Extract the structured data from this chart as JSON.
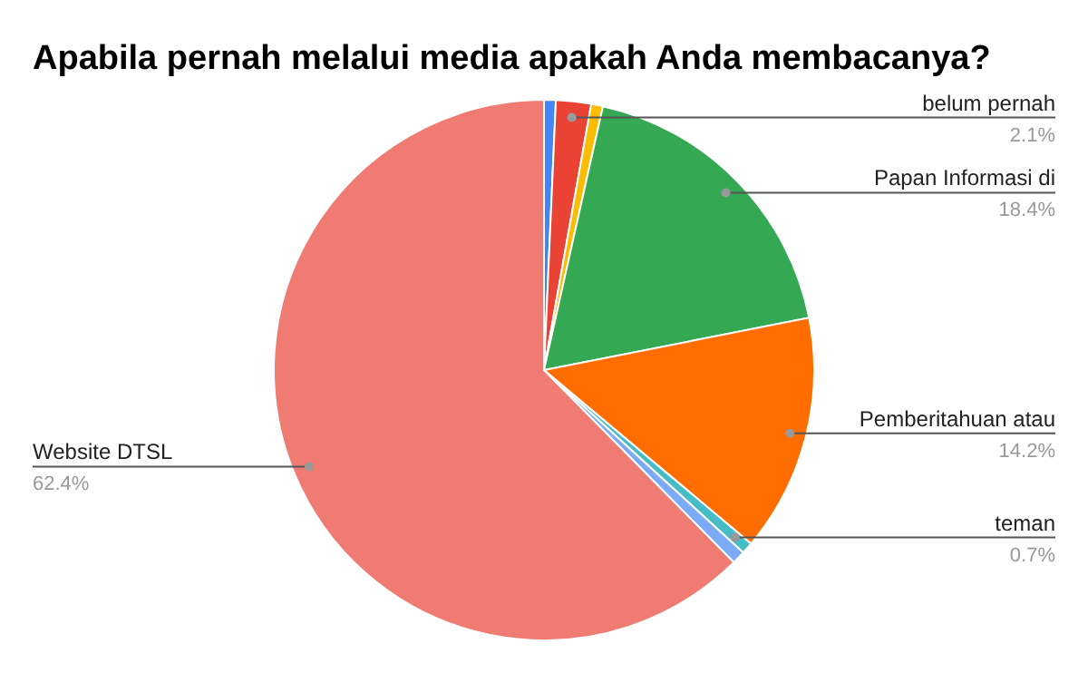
{
  "chart_data": {
    "type": "pie",
    "title": "Apabila pernah melalui media apakah Anda membacanya?",
    "categories": [
      null,
      "belum pernah",
      null,
      "Papan Informasi di",
      "Pemberitahuan atau",
      "teman",
      null,
      "Website DTSL"
    ],
    "values": [
      0.7,
      2.1,
      0.7,
      18.4,
      14.2,
      0.7,
      0.8,
      62.4
    ],
    "value_labels": [
      null,
      "2.1%",
      null,
      "18.4%",
      "14.2%",
      "0.7%",
      null,
      "62.4%"
    ],
    "colors": [
      "#4285f4",
      "#ea4335",
      "#fbbc04",
      "#34a853",
      "#ff6d01",
      "#46bdc6",
      "#7baaf7",
      "#f07b72"
    ]
  }
}
